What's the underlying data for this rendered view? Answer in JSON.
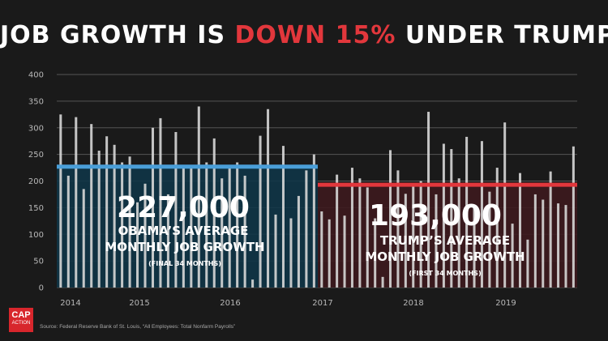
{
  "title": {
    "part1": "JOB GROWTH IS ",
    "highlight": "DOWN 15%",
    "part2": " UNDER TRUMP"
  },
  "colors": {
    "background": "#1a1a1a",
    "obama": "#4a9ed8",
    "obama_fill": "#0f3547",
    "trump": "#e2373c",
    "trump_fill": "#3d1a1e",
    "bar": "#d7d7d7",
    "grid": "#555555",
    "title_highlight": "#e2373c"
  },
  "chart_data": {
    "type": "bar",
    "title": "JOB GROWTH IS DOWN 15% UNDER TRUMP",
    "xlabel": "",
    "ylabel": "",
    "ylim": [
      0,
      400
    ],
    "yticks": [
      0,
      50,
      100,
      150,
      200,
      250,
      300,
      350,
      400
    ],
    "grid": true,
    "x_tick_labels": [
      "2014",
      "2015",
      "2016",
      "2017",
      "2018",
      "2019"
    ],
    "series": [
      {
        "name": "Obama (final 34 months)",
        "values": [
          325,
          210,
          320,
          185,
          307,
          257,
          284,
          268,
          235,
          246,
          160,
          195,
          300,
          318,
          175,
          292,
          227,
          226,
          340,
          235,
          280,
          205,
          230,
          235,
          210,
          15,
          285,
          335,
          137,
          266,
          130,
          172,
          220,
          250
        ]
      },
      {
        "name": "Trump (first 34 months)",
        "values": [
          143,
          128,
          212,
          135,
          225,
          205,
          188,
          130,
          20,
          258,
          220,
          176,
          196,
          200,
          330,
          175,
          270,
          260,
          205,
          283,
          150,
          275,
          180,
          225,
          310,
          120,
          215,
          90,
          175,
          165,
          218,
          158,
          155,
          265
        ]
      }
    ],
    "averages": [
      {
        "name": "Obama",
        "value": 227
      },
      {
        "name": "Trump",
        "value": 193
      }
    ],
    "annotations": {
      "obama_value": "227,000",
      "obama_line1": "OBAMA’S AVERAGE",
      "obama_line2": "MONTHLY JOB GROWTH",
      "obama_note": "(FINAL 34 MONTHS)",
      "trump_value": "193,000",
      "trump_line1": "TRUMP’S AVERAGE",
      "trump_line2": "MONTHLY JOB GROWTH",
      "trump_note": "(FIRST 34 MONTHS)"
    }
  },
  "logo": {
    "line1": "CAP",
    "line2": "ACTION"
  },
  "source": "Source: Federal Reserve Bank of St. Louis, “All Employees: Total Nonfarm Payrolls”"
}
